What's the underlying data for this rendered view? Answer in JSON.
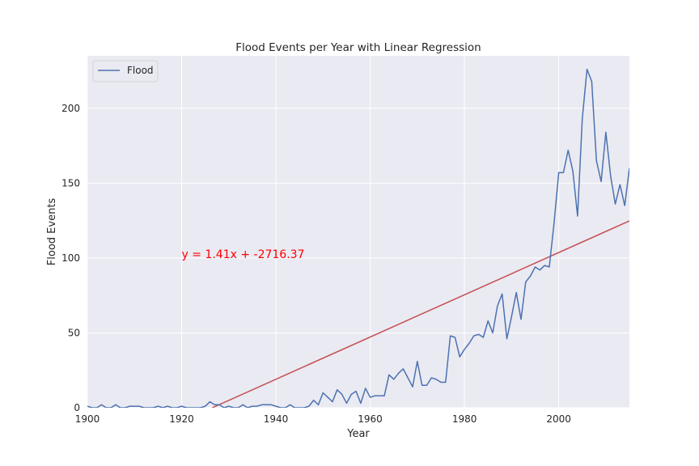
{
  "chart_data": {
    "type": "line",
    "title": "Flood Events per Year with Linear Regression",
    "xlabel": "Year",
    "ylabel": "Flood Events",
    "xlim": [
      1900,
      2015
    ],
    "ylim": [
      0,
      235
    ],
    "xticks": [
      1900,
      1920,
      1940,
      1960,
      1980,
      2000
    ],
    "yticks": [
      0,
      50,
      100,
      150,
      200
    ],
    "grid": true,
    "legend_position": "top-left",
    "background_color": "#EAEAF2",
    "series": [
      {
        "name": "Flood",
        "color": "#4C72B0",
        "x": [
          1900,
          1901,
          1902,
          1903,
          1904,
          1905,
          1906,
          1907,
          1908,
          1909,
          1910,
          1911,
          1912,
          1913,
          1914,
          1915,
          1916,
          1917,
          1918,
          1919,
          1920,
          1921,
          1922,
          1923,
          1924,
          1925,
          1926,
          1927,
          1928,
          1929,
          1930,
          1931,
          1932,
          1933,
          1934,
          1935,
          1936,
          1937,
          1938,
          1939,
          1940,
          1941,
          1942,
          1943,
          1944,
          1945,
          1946,
          1947,
          1948,
          1949,
          1950,
          1951,
          1952,
          1953,
          1954,
          1955,
          1956,
          1957,
          1958,
          1959,
          1960,
          1961,
          1962,
          1963,
          1964,
          1965,
          1966,
          1967,
          1968,
          1969,
          1970,
          1971,
          1972,
          1973,
          1974,
          1975,
          1976,
          1977,
          1978,
          1979,
          1980,
          1981,
          1982,
          1983,
          1984,
          1985,
          1986,
          1987,
          1988,
          1989,
          1990,
          1991,
          1992,
          1993,
          1994,
          1995,
          1996,
          1997,
          1998,
          1999,
          2000,
          2001,
          2002,
          2003,
          2004,
          2005,
          2006,
          2007,
          2008,
          2009,
          2010,
          2011,
          2012,
          2013,
          2014,
          2015
        ],
        "values": [
          1,
          0,
          0,
          2,
          0,
          0,
          2,
          0,
          0,
          1,
          1,
          1,
          0,
          0,
          0,
          1,
          0,
          1,
          0,
          0,
          1,
          0,
          0,
          0,
          0,
          1,
          4,
          2,
          2,
          0,
          1,
          0,
          0,
          2,
          0,
          1,
          1,
          2,
          2,
          2,
          1,
          0,
          0,
          2,
          0,
          0,
          0,
          1,
          5,
          2,
          10,
          7,
          4,
          12,
          9,
          3,
          9,
          11,
          3,
          13,
          7,
          8,
          8,
          8,
          22,
          19,
          23,
          26,
          20,
          14,
          31,
          15,
          15,
          20,
          19,
          17,
          17,
          48,
          47,
          34,
          39,
          43,
          48,
          49,
          47,
          58,
          50,
          68,
          76,
          46,
          61,
          77,
          59,
          84,
          88,
          94,
          92,
          95,
          94,
          123,
          157,
          157,
          172,
          158,
          128,
          193,
          226,
          218,
          165,
          151,
          184,
          155,
          136,
          149,
          135,
          160
        ]
      }
    ],
    "regression": {
      "label": "y = 1.41x + -2716.37",
      "slope": 1.41,
      "intercept": -2716.37,
      "color": "#C44E52",
      "label_color": "#FF0000",
      "label_x": 1920,
      "label_y": 100
    }
  }
}
